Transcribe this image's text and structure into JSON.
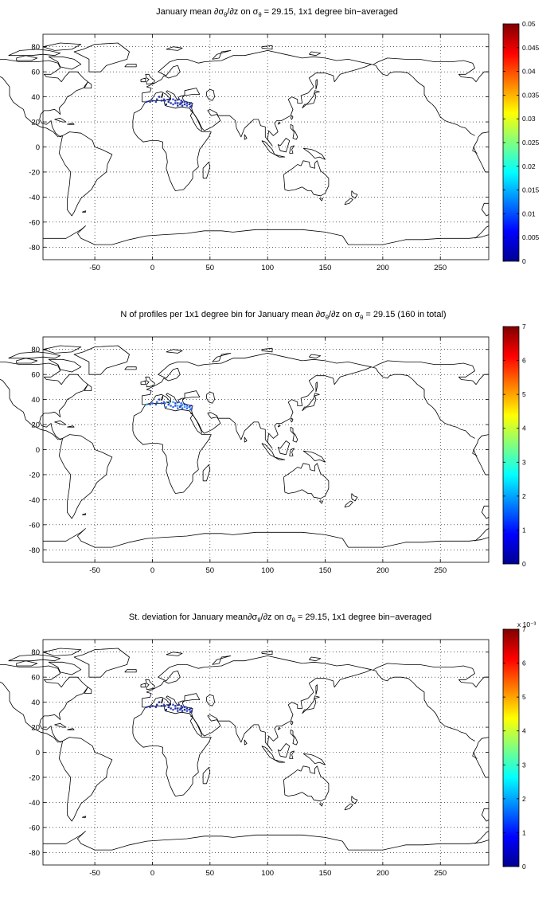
{
  "figure": {
    "panels": [
      {
        "id": "mean",
        "title": {
          "pre": "January mean ∂σ",
          "sub1": "θ",
          "mid": "/∂z on σ",
          "sub2": "θ",
          "post": " = 29.15, 1x1 degree bin−averaged"
        },
        "colorbar": {
          "ticks": [
            "0",
            "0.005",
            "0.01",
            "0.015",
            "0.02",
            "0.025",
            "0.03",
            "0.035",
            "0.04",
            "0.045",
            "0.05"
          ],
          "exponent": ""
        },
        "binned_color": "#1f2fa8"
      },
      {
        "id": "count",
        "title": {
          "pre": "N of profiles per 1x1 degree bin for January mean ∂σ",
          "sub1": "θ",
          "mid": "/∂z on σ",
          "sub2": "θ",
          "post": " = 29.15 (160 in total)"
        },
        "colorbar": {
          "ticks": [
            "0",
            "1",
            "2",
            "3",
            "4",
            "5",
            "6",
            "7"
          ],
          "exponent": ""
        },
        "binned_color": "#2f7fe0"
      },
      {
        "id": "stdev",
        "title": {
          "pre": "St. deviation for January mean∂σ",
          "sub1": "θ",
          "mid": "/∂z on σ",
          "sub2": "θ",
          "post": " = 29.15, 1x1 degree bin−averaged"
        },
        "colorbar": {
          "ticks": [
            "0",
            "1",
            "2",
            "3",
            "4",
            "5",
            "6",
            "7"
          ],
          "exponent": "x 10⁻³"
        },
        "binned_color": "#1a2a9a"
      }
    ],
    "axes": {
      "x_ticks": [
        -50,
        0,
        50,
        100,
        150,
        200,
        250
      ],
      "y_ticks": [
        -80,
        -60,
        -40,
        -20,
        0,
        20,
        40,
        60,
        80
      ],
      "xlim": [
        -95,
        292
      ],
      "ylim": [
        -90,
        90
      ],
      "grid": "dotted"
    },
    "colormap": "jet"
  }
}
